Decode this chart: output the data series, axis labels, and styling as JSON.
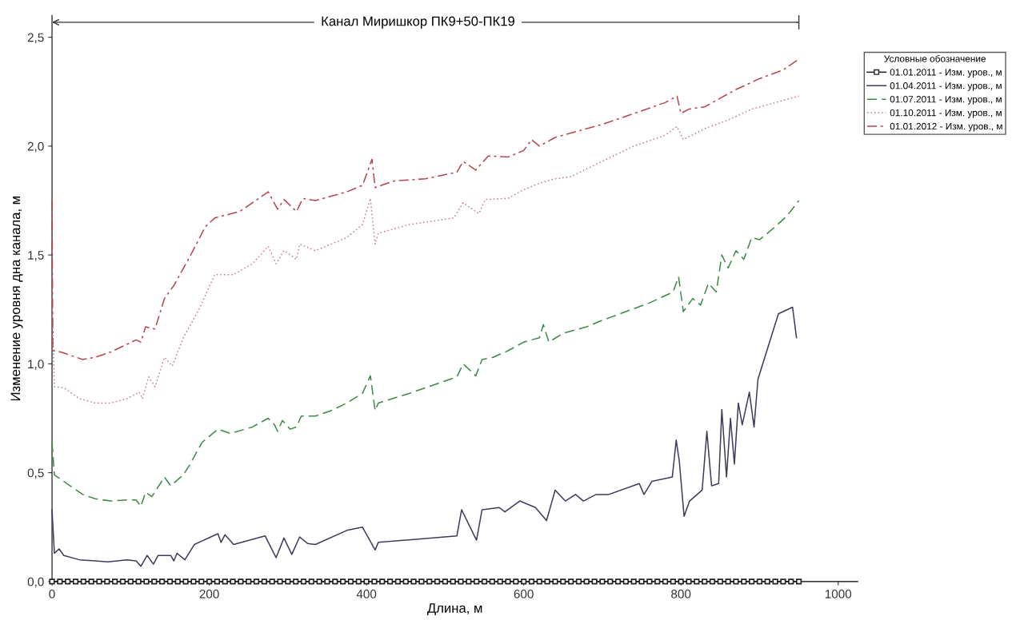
{
  "chart_data": {
    "type": "line",
    "title": "Канал Миришкор ПК9+50-ПК19",
    "xlabel": "Длина, м",
    "ylabel": "Изменение уровня дна канала, м",
    "legend_title": "Условные обозначение",
    "legend": "top right",
    "grid": false,
    "xlim": [
      0,
      1025
    ],
    "xticks": [
      0,
      200,
      400,
      600,
      800,
      1000
    ],
    "ylim": [
      0,
      2.6
    ],
    "yticks": [
      {
        "value": 0,
        "label": "0,0"
      },
      {
        "value": 0.5,
        "label": "0,5"
      },
      {
        "value": 1.0,
        "label": "1,0"
      },
      {
        "value": 1.5,
        "label": "1,5"
      },
      {
        "value": 2.0,
        "label": "2,0"
      },
      {
        "value": 2.5,
        "label": "2,5"
      }
    ],
    "series": [
      {
        "name": "01.01.2011 - Изм. уров., м",
        "color": "#222222",
        "line_style": "solid",
        "marker": "square",
        "x": [
          0,
          10,
          20,
          30,
          40,
          50,
          60,
          70,
          80,
          90,
          100,
          110,
          120,
          130,
          140,
          150,
          160,
          170,
          180,
          190,
          200,
          210,
          220,
          230,
          240,
          250,
          260,
          270,
          280,
          290,
          300,
          310,
          320,
          330,
          340,
          350,
          360,
          370,
          380,
          390,
          400,
          410,
          420,
          430,
          440,
          450,
          460,
          470,
          480,
          490,
          500,
          510,
          520,
          530,
          540,
          550,
          560,
          570,
          580,
          590,
          600,
          610,
          620,
          630,
          640,
          650,
          660,
          670,
          680,
          690,
          700,
          710,
          720,
          730,
          740,
          750,
          760,
          770,
          780,
          790,
          800,
          810,
          820,
          830,
          840,
          850,
          860,
          870,
          880,
          890,
          900,
          910,
          920,
          930,
          940,
          950
        ],
        "values": [
          0,
          0,
          0,
          0,
          0,
          0,
          0,
          0,
          0,
          0,
          0,
          0,
          0,
          0,
          0,
          0,
          0,
          0,
          0,
          0,
          0,
          0,
          0,
          0,
          0,
          0,
          0,
          0,
          0,
          0,
          0,
          0,
          0,
          0,
          0,
          0,
          0,
          0,
          0,
          0,
          0,
          0,
          0,
          0,
          0,
          0,
          0,
          0,
          0,
          0,
          0,
          0,
          0,
          0,
          0,
          0,
          0,
          0,
          0,
          0,
          0,
          0,
          0,
          0,
          0,
          0,
          0,
          0,
          0,
          0,
          0,
          0,
          0,
          0,
          0,
          0,
          0,
          0,
          0,
          0,
          0,
          0,
          0,
          0,
          0,
          0,
          0,
          0,
          0,
          0,
          0,
          0,
          0,
          0,
          0,
          0
        ]
      },
      {
        "name": "01.04.2011 - Изм. уров., м",
        "color": "#3c3c5c",
        "line_style": "solid",
        "marker": "none",
        "x": [
          0,
          3,
          9,
          15,
          35,
          55,
          71,
          95,
          107,
          113,
          121,
          129,
          135,
          151,
          155,
          159,
          169,
          181,
          211,
          215,
          220,
          231,
          271,
          285,
          295,
          305,
          315,
          325,
          335,
          375,
          395,
          411,
          415,
          515,
          521,
          540,
          547,
          569,
          576,
          595,
          615,
          629,
          640,
          653,
          666,
          676,
          692,
          708,
          747,
          753,
          763,
          789,
          794,
          798,
          804,
          811,
          827,
          833,
          839,
          848,
          852,
          858,
          863,
          868,
          873,
          878,
          887,
          893,
          898,
          924,
          942,
          947
        ],
        "values": [
          0.33,
          0.13,
          0.15,
          0.12,
          0.1,
          0.095,
          0.09,
          0.1,
          0.095,
          0.07,
          0.12,
          0.08,
          0.12,
          0.12,
          0.095,
          0.13,
          0.1,
          0.17,
          0.22,
          0.18,
          0.215,
          0.17,
          0.21,
          0.11,
          0.2,
          0.125,
          0.205,
          0.175,
          0.17,
          0.235,
          0.25,
          0.145,
          0.18,
          0.21,
          0.33,
          0.19,
          0.33,
          0.34,
          0.32,
          0.37,
          0.34,
          0.28,
          0.42,
          0.37,
          0.4,
          0.37,
          0.4,
          0.4,
          0.45,
          0.4,
          0.46,
          0.48,
          0.65,
          0.55,
          0.3,
          0.37,
          0.42,
          0.69,
          0.44,
          0.45,
          0.79,
          0.48,
          0.75,
          0.54,
          0.82,
          0.72,
          0.87,
          0.71,
          0.93,
          1.23,
          1.26,
          1.12
        ]
      },
      {
        "name": "01.07.2011 - Изм. уров., м",
        "color": "#3f8a46",
        "line_style": "dashed",
        "marker": "none",
        "x": [
          0,
          3,
          15,
          31,
          39,
          55,
          75,
          95,
          107,
          113,
          119,
          127,
          143,
          151,
          167,
          175,
          191,
          211,
          227,
          255,
          275,
          283,
          287,
          293,
          303,
          311,
          317,
          335,
          355,
          375,
          395,
          405,
          411,
          415,
          455,
          515,
          523,
          539,
          547,
          561,
          580,
          600,
          620,
          625,
          632,
          650,
          680,
          700,
          730,
          760,
          790,
          797,
          803,
          815,
          825,
          835,
          845,
          852,
          860,
          870,
          880,
          890,
          900,
          920,
          935,
          950
        ],
        "values": [
          0.64,
          0.49,
          0.46,
          0.42,
          0.4,
          0.38,
          0.37,
          0.375,
          0.375,
          0.345,
          0.41,
          0.39,
          0.48,
          0.44,
          0.49,
          0.535,
          0.64,
          0.7,
          0.68,
          0.71,
          0.75,
          0.72,
          0.69,
          0.74,
          0.7,
          0.71,
          0.76,
          0.76,
          0.785,
          0.82,
          0.865,
          0.945,
          0.785,
          0.82,
          0.865,
          0.94,
          1.0,
          0.945,
          1.02,
          1.03,
          1.06,
          1.1,
          1.12,
          1.18,
          1.1,
          1.14,
          1.17,
          1.2,
          1.24,
          1.28,
          1.33,
          1.4,
          1.24,
          1.3,
          1.27,
          1.37,
          1.33,
          1.5,
          1.44,
          1.52,
          1.48,
          1.58,
          1.57,
          1.63,
          1.68,
          1.75
        ]
      },
      {
        "name": "01.10.2011 - Изм. уров., м",
        "color": "#c47a8a",
        "line_style": "dotted",
        "marker": "none",
        "x": [
          0,
          3,
          15,
          35,
          55,
          75,
          95,
          111,
          115,
          123,
          131,
          143,
          153,
          167,
          187,
          207,
          231,
          255,
          275,
          285,
          295,
          311,
          315,
          335,
          375,
          395,
          405,
          411,
          415,
          455,
          511,
          523,
          543,
          551,
          580,
          600,
          620,
          640,
          660,
          700,
          740,
          780,
          795,
          803,
          830,
          860,
          890,
          920,
          950
        ],
        "values": [
          1.3,
          0.895,
          0.89,
          0.84,
          0.82,
          0.82,
          0.84,
          0.87,
          0.84,
          0.94,
          0.895,
          1.03,
          0.99,
          1.12,
          1.25,
          1.41,
          1.41,
          1.46,
          1.54,
          1.46,
          1.52,
          1.48,
          1.55,
          1.52,
          1.58,
          1.64,
          1.76,
          1.55,
          1.6,
          1.64,
          1.67,
          1.74,
          1.69,
          1.755,
          1.76,
          1.8,
          1.83,
          1.85,
          1.86,
          1.93,
          2.0,
          2.05,
          2.09,
          2.03,
          2.08,
          2.12,
          2.17,
          2.2,
          2.23
        ]
      },
      {
        "name": "01.01.2012 - Изм. уров., м",
        "color": "#b8444c",
        "line_style": "dashdot",
        "marker": "none",
        "x": [
          0,
          1,
          5,
          15,
          39,
          55,
          75,
          107,
          113,
          119,
          131,
          143,
          155,
          175,
          195,
          207,
          239,
          275,
          287,
          295,
          311,
          319,
          335,
          375,
          395,
          407,
          411,
          435,
          475,
          515,
          523,
          539,
          555,
          580,
          600,
          610,
          620,
          640,
          660,
          700,
          740,
          780,
          795,
          800,
          810,
          830,
          850,
          870,
          900,
          930,
          950
        ],
        "values": [
          1.75,
          1.06,
          1.06,
          1.05,
          1.02,
          1.03,
          1.055,
          1.11,
          1.1,
          1.17,
          1.16,
          1.3,
          1.36,
          1.49,
          1.63,
          1.67,
          1.7,
          1.79,
          1.71,
          1.755,
          1.7,
          1.76,
          1.75,
          1.79,
          1.82,
          1.94,
          1.81,
          1.84,
          1.85,
          1.88,
          1.93,
          1.89,
          1.955,
          1.95,
          1.98,
          2.03,
          2.0,
          2.04,
          2.06,
          2.1,
          2.15,
          2.2,
          2.23,
          2.15,
          2.17,
          2.18,
          2.22,
          2.26,
          2.31,
          2.35,
          2.4
        ]
      }
    ]
  }
}
